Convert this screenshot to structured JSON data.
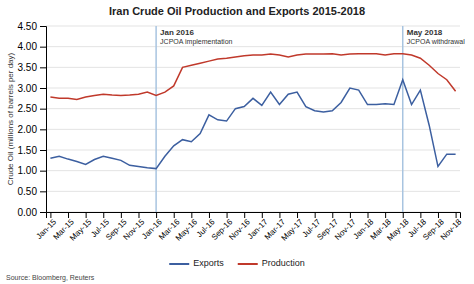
{
  "chart_data": {
    "type": "line",
    "title": "Iran Crude Oil Production and Exports 2015-2018",
    "ylabel": "Crude Oil (millions of barrels per day)",
    "source": "Source: Bloomberg, Reuters",
    "categories": [
      "Jan-15",
      null,
      "Mar-15",
      null,
      "May-15",
      null,
      "Jul-15",
      null,
      "Sep-15",
      null,
      "Nov-15",
      null,
      "Jan-16",
      null,
      "Mar-16",
      null,
      "May-16",
      null,
      "Jul-16",
      null,
      "Sep-16",
      null,
      "Nov-16",
      null,
      "Jan-17",
      null,
      "Mar-17",
      null,
      "May-17",
      null,
      "Jul-17",
      null,
      "Sep-17",
      null,
      "Nov-17",
      null,
      "Jan-18",
      null,
      "Mar-18",
      null,
      "May-18",
      null,
      "Jul-18",
      null,
      "Sep-18",
      null,
      "Nov-18"
    ],
    "series": [
      {
        "name": "Exports",
        "color": "#3C5FA0",
        "values": [
          1.3,
          1.35,
          1.28,
          1.22,
          1.15,
          1.27,
          1.35,
          1.3,
          1.25,
          1.13,
          1.1,
          1.07,
          1.05,
          1.35,
          1.6,
          1.75,
          1.7,
          1.9,
          2.35,
          2.23,
          2.2,
          2.5,
          2.55,
          2.75,
          2.58,
          2.9,
          2.6,
          2.85,
          2.9,
          2.55,
          2.45,
          2.42,
          2.45,
          2.65,
          3.0,
          2.95,
          2.6,
          2.6,
          2.62,
          2.6,
          3.2,
          2.6,
          2.95,
          2.1,
          1.1,
          1.4,
          1.4
        ]
      },
      {
        "name": "Production",
        "color": "#C0392B",
        "values": [
          2.78,
          2.75,
          2.75,
          2.72,
          2.78,
          2.82,
          2.85,
          2.83,
          2.82,
          2.83,
          2.85,
          2.9,
          2.82,
          2.9,
          3.05,
          3.5,
          3.55,
          3.6,
          3.65,
          3.7,
          3.72,
          3.75,
          3.78,
          3.8,
          3.8,
          3.82,
          3.8,
          3.75,
          3.8,
          3.82,
          3.82,
          3.82,
          3.83,
          3.8,
          3.82,
          3.83,
          3.83,
          3.83,
          3.8,
          3.83,
          3.83,
          3.8,
          3.72,
          3.55,
          3.35,
          3.2,
          2.92
        ]
      }
    ],
    "annotations": [
      {
        "category": "Jan-16",
        "label": "Jan 2016",
        "text": "JCPOA implementation",
        "color": "#a8c4e0"
      },
      {
        "category": "May-18",
        "label": "May 2018",
        "text": "JCPOA withdrawal",
        "color": "#a8c4e0"
      }
    ],
    "ylim": [
      0.0,
      4.5
    ],
    "yticks": [
      {
        "value": 0.0,
        "label": "0.00"
      },
      {
        "value": 0.5,
        "label": "0.50"
      },
      {
        "value": 1.0,
        "label": "1.00"
      },
      {
        "value": 1.5,
        "label": "1.50"
      },
      {
        "value": 2.0,
        "label": "2.00"
      },
      {
        "value": 2.5,
        "label": "2.50"
      },
      {
        "value": 3.0,
        "label": "3.00"
      },
      {
        "value": 3.5,
        "label": "3.50"
      },
      {
        "value": 4.0,
        "label": "4.00"
      },
      {
        "value": 4.5,
        "label": "4.50"
      }
    ],
    "grid": true,
    "legend": "bottom"
  }
}
